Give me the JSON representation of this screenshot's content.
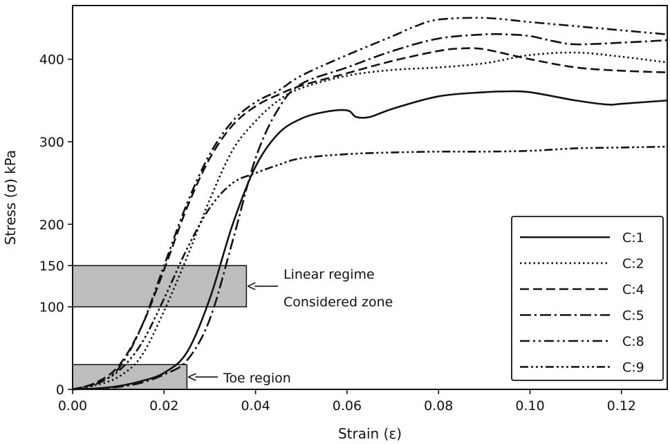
{
  "chart_data": {
    "type": "line",
    "title": "",
    "xlabel": "Strain (ε)",
    "ylabel": "Stress (σ) kPa",
    "xlim": [
      0,
      0.13
    ],
    "ylim": [
      0,
      465
    ],
    "xticks": [
      "0.00",
      "0.02",
      "0.04",
      "0.06",
      "0.08",
      "0.10",
      "0.12"
    ],
    "yticks": [
      "0",
      "100",
      "150",
      "200",
      "300",
      "400"
    ],
    "grid": false,
    "legend_position": "bottom-right",
    "series": [
      {
        "name": "C:1",
        "dash": "solid",
        "x": [
          0,
          0.005,
          0.01,
          0.015,
          0.02,
          0.025,
          0.03,
          0.035,
          0.04,
          0.045,
          0.05,
          0.055,
          0.06,
          0.062,
          0.065,
          0.07,
          0.08,
          0.09,
          0.095,
          0.1,
          0.11,
          0.117,
          0.12,
          0.13
        ],
        "y": [
          0,
          1,
          4,
          10,
          20,
          45,
          110,
          200,
          270,
          310,
          328,
          336,
          338,
          330,
          330,
          340,
          355,
          360,
          361,
          360,
          350,
          345,
          346,
          350
        ]
      },
      {
        "name": "C:2",
        "dash": "dotted",
        "x": [
          0,
          0.005,
          0.01,
          0.015,
          0.02,
          0.025,
          0.03,
          0.035,
          0.04,
          0.045,
          0.05,
          0.06,
          0.07,
          0.08,
          0.09,
          0.1,
          0.11,
          0.12,
          0.13
        ],
        "y": [
          0,
          5,
          15,
          40,
          95,
          160,
          230,
          290,
          325,
          350,
          365,
          380,
          387,
          390,
          395,
          405,
          408,
          403,
          396
        ]
      },
      {
        "name": "C:4",
        "dash": "dashed",
        "x": [
          0,
          0.005,
          0.01,
          0.015,
          0.02,
          0.025,
          0.03,
          0.035,
          0.04,
          0.045,
          0.05,
          0.06,
          0.07,
          0.08,
          0.085,
          0.09,
          0.1,
          0.11,
          0.12,
          0.13
        ],
        "y": [
          0,
          8,
          28,
          75,
          145,
          220,
          280,
          320,
          343,
          357,
          368,
          383,
          398,
          410,
          413,
          412,
          400,
          390,
          386,
          384
        ]
      },
      {
        "name": "C:5",
        "dash": "dashdot",
        "x": [
          0,
          0.005,
          0.01,
          0.015,
          0.02,
          0.025,
          0.03,
          0.035,
          0.04,
          0.045,
          0.05,
          0.06,
          0.07,
          0.08,
          0.09,
          0.095,
          0.1,
          0.105,
          0.11,
          0.12,
          0.13
        ],
        "y": [
          0,
          1,
          3,
          8,
          18,
          35,
          85,
          180,
          280,
          340,
          370,
          390,
          410,
          425,
          430,
          430,
          428,
          422,
          418,
          420,
          423
        ]
      },
      {
        "name": "C:8",
        "dash": "dashdotdot",
        "x": [
          0,
          0.005,
          0.01,
          0.015,
          0.02,
          0.025,
          0.03,
          0.035,
          0.04,
          0.045,
          0.05,
          0.06,
          0.07,
          0.075,
          0.08,
          0.09,
          0.1,
          0.11,
          0.12,
          0.13
        ],
        "y": [
          0,
          6,
          25,
          75,
          150,
          225,
          285,
          325,
          348,
          362,
          380,
          405,
          428,
          440,
          448,
          450,
          445,
          440,
          435,
          430
        ]
      },
      {
        "name": "C:9",
        "dash": "dashdotdotdot",
        "x": [
          0,
          0.005,
          0.01,
          0.015,
          0.02,
          0.025,
          0.03,
          0.035,
          0.04,
          0.045,
          0.05,
          0.06,
          0.07,
          0.08,
          0.09,
          0.1,
          0.11,
          0.12,
          0.13
        ],
        "y": [
          0,
          7,
          22,
          55,
          110,
          170,
          220,
          250,
          262,
          272,
          280,
          285,
          287,
          288,
          288,
          289,
          292,
          293,
          294
        ]
      }
    ],
    "regions": [
      {
        "label": "Linear regime\nConsidered zone",
        "x": [
          0,
          0.038
        ],
        "y": [
          100,
          150
        ],
        "text_lines": [
          "Linear regime",
          "Considered zone"
        ]
      },
      {
        "label": "Toe region",
        "x": [
          0,
          0.025
        ],
        "y": [
          0,
          30
        ],
        "text_lines": [
          "Toe region"
        ]
      }
    ],
    "colors": {
      "line": "#111111",
      "region_fill": "#bdbdbd",
      "background": "#ffffff"
    }
  }
}
